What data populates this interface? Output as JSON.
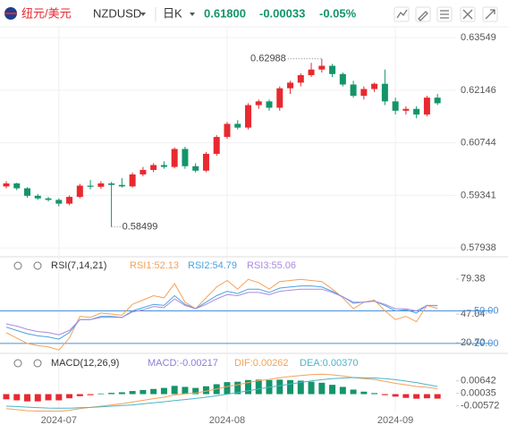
{
  "header": {
    "pair_cn": "纽元/美元",
    "symbol": "NZDUSD",
    "period": "日K",
    "price": "0.61800",
    "change": "-0.00033",
    "change_pct": "-0.05%"
  },
  "chart_data": [
    {
      "type": "candlestick",
      "categories": [
        null,
        null,
        null,
        null,
        null,
        "2024-07",
        null,
        null,
        null,
        null,
        null,
        null,
        null,
        null,
        null,
        null,
        null,
        null,
        null,
        null,
        null,
        "2024-08",
        null,
        null,
        null,
        null,
        null,
        null,
        null,
        null,
        null,
        null,
        null,
        null,
        null,
        null,
        null,
        "2024-09",
        null,
        null,
        null,
        null
      ],
      "open": [
        0.5958,
        0.5966,
        0.5953,
        0.5933,
        0.5926,
        0.5922,
        0.5912,
        0.593,
        0.596,
        0.5957,
        0.5966,
        0.5962,
        0.5958,
        0.599,
        0.6002,
        0.6015,
        0.601,
        0.6058,
        0.6012,
        0.6,
        0.6045,
        0.609,
        0.6125,
        0.6115,
        0.6175,
        0.6185,
        0.6168,
        0.622,
        0.6235,
        0.6255,
        0.627,
        0.628,
        0.6258,
        0.623,
        0.62,
        0.6218,
        0.6232,
        0.6185,
        0.616,
        0.6165,
        0.615,
        0.6195
      ],
      "high": [
        0.5972,
        0.5968,
        0.5956,
        0.5938,
        0.593,
        0.5926,
        0.5934,
        0.5965,
        0.5975,
        0.5972,
        0.597,
        0.598,
        0.5995,
        0.601,
        0.602,
        0.6025,
        0.6062,
        0.6064,
        0.602,
        0.605,
        0.6095,
        0.613,
        0.6135,
        0.618,
        0.619,
        0.619,
        0.6225,
        0.624,
        0.626,
        0.6288,
        0.62988,
        0.6285,
        0.6262,
        0.624,
        0.6225,
        0.6235,
        0.627,
        0.6195,
        0.6172,
        0.6172,
        0.62,
        0.6205
      ],
      "low": [
        0.5953,
        0.5948,
        0.5928,
        0.5922,
        0.5918,
        0.5905,
        0.5908,
        0.5926,
        0.595,
        0.5952,
        0.58499,
        0.5955,
        0.5955,
        0.5985,
        0.5996,
        0.6005,
        0.6006,
        0.6005,
        0.5995,
        0.5996,
        0.604,
        0.6085,
        0.611,
        0.611,
        0.6165,
        0.616,
        0.616,
        0.6205,
        0.6225,
        0.625,
        0.6262,
        0.625,
        0.6225,
        0.6195,
        0.619,
        0.621,
        0.6175,
        0.615,
        0.615,
        0.614,
        0.6145,
        0.6175
      ],
      "close": [
        0.5966,
        0.5953,
        0.5933,
        0.5926,
        0.5922,
        0.5912,
        0.593,
        0.596,
        0.5957,
        0.5966,
        0.5962,
        0.5958,
        0.599,
        0.6002,
        0.6015,
        0.601,
        0.6058,
        0.6012,
        0.6,
        0.6045,
        0.609,
        0.6125,
        0.6115,
        0.6175,
        0.6185,
        0.6168,
        0.622,
        0.6235,
        0.6255,
        0.627,
        0.628,
        0.6258,
        0.623,
        0.62,
        0.6218,
        0.6232,
        0.6185,
        0.616,
        0.6165,
        0.615,
        0.6195,
        0.618
      ],
      "up_color": "#e8292f",
      "down_color": "#14946a",
      "ylim": [
        0.5775,
        0.6384
      ],
      "yticks": [
        0.63549,
        0.62146,
        0.60744,
        0.59341,
        0.57938
      ],
      "high_label": "0.62988",
      "low_label": "0.58499",
      "grid": true
    },
    {
      "type": "line",
      "title": "RSI(7,14,21)",
      "series": [
        {
          "name": "RSI1:52.13",
          "color": "#f3a25a",
          "values": [
            30,
            25,
            20,
            18,
            17,
            14,
            25,
            45,
            44,
            48,
            47,
            46,
            56,
            60,
            64,
            62,
            75,
            58,
            52,
            62,
            72,
            78,
            70,
            79,
            76,
            70,
            77,
            78,
            79,
            78,
            77,
            70,
            62,
            52,
            58,
            60,
            50,
            42,
            45,
            40,
            55,
            52.13
          ]
        },
        {
          "name": "RSI2:54.79",
          "color": "#4aa3df",
          "values": [
            35,
            32,
            29,
            27,
            26,
            24,
            30,
            42,
            42,
            45,
            45,
            44,
            50,
            53,
            56,
            55,
            64,
            56,
            52,
            58,
            64,
            68,
            66,
            70,
            70,
            67,
            71,
            72,
            73,
            73,
            72,
            68,
            63,
            57,
            58,
            59,
            55,
            50,
            51,
            48,
            55,
            54.79
          ]
        },
        {
          "name": "RSI3:55.06",
          "color": "#a98be2",
          "values": [
            38,
            36,
            33,
            31,
            30,
            28,
            32,
            42,
            42,
            44,
            44,
            44,
            49,
            51,
            54,
            53,
            61,
            55,
            52,
            56,
            61,
            65,
            64,
            67,
            67,
            65,
            68,
            69,
            70,
            70,
            70,
            67,
            63,
            58,
            58,
            59,
            56,
            52,
            52,
            50,
            55,
            55.06
          ]
        }
      ],
      "ylim": [
        15,
        85
      ],
      "yticks": [
        79.38,
        47.04,
        {
          "value": 20.7,
          "label": "20.70"
        }
      ],
      "reference_lines": [
        {
          "value": 50,
          "label": "50.00"
        },
        {
          "value": 20,
          "label": "20.00"
        }
      ],
      "reference_color": "#4a90d9"
    },
    {
      "type": "macd",
      "title": "MACD(12,26,9)",
      "series": [
        {
          "name": "MACD:-0.00217",
          "kind": "bar",
          "values": [
            -0.0025,
            -0.003,
            -0.0035,
            -0.0035,
            -0.003,
            -0.003,
            -0.002,
            -0.001,
            -0.0005,
            0.0003,
            0.0006,
            0.0009,
            0.0015,
            0.002,
            0.0025,
            0.003,
            0.004,
            0.0035,
            0.003,
            0.0038,
            0.0048,
            0.0058,
            0.006,
            0.0068,
            0.007,
            0.0068,
            0.007,
            0.0068,
            0.0065,
            0.006,
            0.0055,
            0.0045,
            0.0035,
            0.0022,
            0.0012,
            0.0005,
            -0.0005,
            -0.0012,
            -0.0018,
            -0.0022,
            -0.002,
            -0.00217
          ]
        },
        {
          "name": "DIF:0.00262",
          "kind": "line",
          "color": "#f3a25a",
          "values": [
            -0.007,
            -0.0075,
            -0.008,
            -0.0082,
            -0.0082,
            -0.0083,
            -0.0078,
            -0.007,
            -0.0064,
            -0.0058,
            -0.0052,
            -0.0046,
            -0.0038,
            -0.003,
            -0.0022,
            -0.0015,
            -0.0004,
            0.0002,
            0.0006,
            0.0014,
            0.0025,
            0.0037,
            0.0045,
            0.0056,
            0.0065,
            0.0071,
            0.0079,
            0.0085,
            0.009,
            0.0094,
            0.0096,
            0.0093,
            0.0088,
            0.008,
            0.0075,
            0.0071,
            0.0062,
            0.0052,
            0.0045,
            0.0037,
            0.0033,
            0.00262
          ]
        },
        {
          "name": "DEA:0.00370",
          "kind": "line",
          "color": "#4fb3c8",
          "values": [
            -0.0058,
            -0.006,
            -0.0063,
            -0.0065,
            -0.0067,
            -0.0068,
            -0.0068,
            -0.0066,
            -0.0064,
            -0.0061,
            -0.0058,
            -0.0055,
            -0.0052,
            -0.0047,
            -0.0042,
            -0.0037,
            -0.0031,
            -0.0026,
            -0.0021,
            -0.0015,
            -0.0008,
            0,
            0.0008,
            0.0016,
            0.0025,
            0.0033,
            0.0041,
            0.0049,
            0.0057,
            0.0064,
            0.007,
            0.0075,
            0.0078,
            0.008,
            0.0079,
            0.0078,
            0.0075,
            0.007,
            0.0063,
            0.0056,
            0.0046,
            0.0037
          ]
        }
      ],
      "positive_color": "#14946a",
      "negative_color": "#e8292f",
      "ylim": [
        -0.0084,
        0.0132
      ],
      "yticks": [
        0.00642,
        0.00035,
        -0.00572
      ]
    }
  ]
}
